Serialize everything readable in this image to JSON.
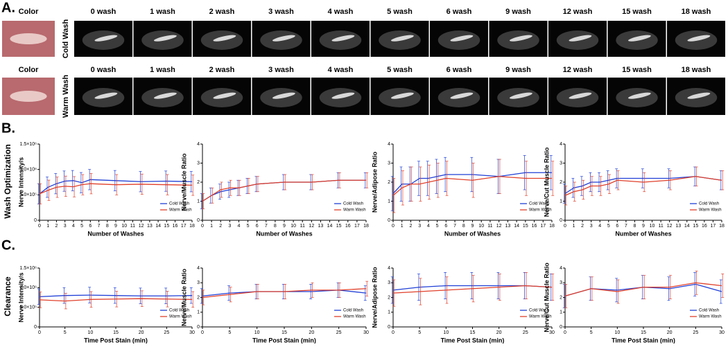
{
  "panel_labels": [
    "A.",
    "B.",
    "C."
  ],
  "row_titles": [
    "Wash Optimization",
    "Clearance"
  ],
  "image_rows": [
    {
      "label": "Cold Wash",
      "headers": [
        "Color",
        "0 wash",
        "1 wash",
        "2 wash",
        "3 wash",
        "4 wash",
        "5 wash",
        "6 wash",
        "9 wash",
        "12 wash",
        "15 wash",
        "18 wash"
      ]
    },
    {
      "label": "Warm Wash",
      "headers": [
        "Color",
        "0 wash",
        "1 wash",
        "2 wash",
        "3 wash",
        "4 wash",
        "5 wash",
        "6 wash",
        "9 wash",
        "12 wash",
        "15 wash",
        "18 wash"
      ]
    }
  ],
  "chart_data": [
    {
      "type": "line",
      "ylabel": "Nerve Intensity/s",
      "xlabel": "Number of Washes",
      "x": [
        0,
        1,
        2,
        3,
        4,
        5,
        6,
        9,
        12,
        15,
        18
      ],
      "xlim": [
        0,
        18
      ],
      "xticks": [
        0,
        1,
        2,
        3,
        4,
        5,
        6,
        7,
        8,
        9,
        10,
        11,
        12,
        13,
        14,
        15,
        16,
        17,
        18
      ],
      "ylim": [
        0,
        1500000
      ],
      "yticks": [
        0,
        {
          "value": 500000,
          "label": "5.0×10⁵"
        },
        {
          "value": 1000000,
          "label": "1.0×10⁶"
        },
        {
          "value": 1500000,
          "label": "1.5×10⁶"
        }
      ],
      "legend": "lower right",
      "series": [
        {
          "name": "Cold Wash",
          "color": "#1f3fd6",
          "values": [
            520000,
            650000,
            720000,
            770000,
            780000,
            740000,
            800000,
            780000,
            760000,
            770000,
            760000
          ],
          "errors": [
            200000,
            200000,
            200000,
            200000,
            200000,
            200000,
            200000,
            200000,
            200000,
            200000,
            200000
          ]
        },
        {
          "name": "Warm Wash",
          "color": "#e0402a",
          "values": [
            520000,
            590000,
            650000,
            670000,
            660000,
            700000,
            720000,
            700000,
            710000,
            700000,
            690000
          ],
          "errors": [
            200000,
            200000,
            200000,
            200000,
            200000,
            200000,
            200000,
            200000,
            200000,
            200000,
            200000
          ]
        }
      ]
    },
    {
      "type": "line",
      "ylabel": "Nerve/Muscle Ratio",
      "xlabel": "Number of Washes",
      "x": [
        0,
        1,
        2,
        3,
        4,
        5,
        6,
        9,
        12,
        15,
        18
      ],
      "xlim": [
        0,
        18
      ],
      "xticks": [
        0,
        1,
        2,
        3,
        4,
        5,
        6,
        7,
        8,
        9,
        10,
        11,
        12,
        13,
        14,
        15,
        16,
        17,
        18
      ],
      "ylim": [
        0,
        4
      ],
      "yticks": [
        0,
        1,
        2,
        3,
        4
      ],
      "legend": "lower right",
      "series": [
        {
          "name": "Cold Wash",
          "color": "#1f3fd6",
          "values": [
            1.0,
            1.3,
            1.5,
            1.6,
            1.7,
            1.8,
            1.9,
            2.0,
            2.0,
            2.1,
            2.1
          ],
          "errors": [
            0.4,
            0.4,
            0.4,
            0.4,
            0.4,
            0.4,
            0.4,
            0.4,
            0.4,
            0.4,
            0.4
          ]
        },
        {
          "name": "Warm Wash",
          "color": "#e0402a",
          "values": [
            1.0,
            1.3,
            1.6,
            1.7,
            1.7,
            1.8,
            1.9,
            2.0,
            2.0,
            2.1,
            2.1
          ],
          "errors": [
            0.4,
            0.4,
            0.4,
            0.4,
            0.4,
            0.4,
            0.4,
            0.4,
            0.4,
            0.4,
            0.4
          ]
        }
      ]
    },
    {
      "type": "line",
      "ylabel": "Nerve/Adipose Ratio",
      "xlabel": "Number of Washes",
      "x": [
        0,
        1,
        2,
        3,
        4,
        5,
        6,
        9,
        12,
        15,
        18
      ],
      "xlim": [
        0,
        18
      ],
      "xticks": [
        0,
        1,
        2,
        3,
        4,
        5,
        6,
        7,
        8,
        9,
        10,
        11,
        12,
        13,
        14,
        15,
        16,
        17,
        18
      ],
      "ylim": [
        0,
        4
      ],
      "yticks": [
        0,
        1,
        2,
        3,
        4
      ],
      "legend": "lower right",
      "series": [
        {
          "name": "Cold Wash",
          "color": "#1f3fd6",
          "values": [
            1.4,
            1.9,
            1.9,
            2.2,
            2.2,
            2.3,
            2.4,
            2.4,
            2.3,
            2.5,
            2.5
          ],
          "errors": [
            0.9,
            0.9,
            0.9,
            0.9,
            0.9,
            0.9,
            0.9,
            0.9,
            0.9,
            0.9,
            0.9
          ]
        },
        {
          "name": "Warm Wash",
          "color": "#e0402a",
          "values": [
            1.3,
            1.7,
            1.9,
            1.9,
            2.0,
            2.1,
            2.2,
            2.1,
            2.3,
            2.2,
            2.2
          ],
          "errors": [
            0.9,
            0.9,
            0.9,
            0.9,
            0.9,
            0.9,
            0.9,
            0.9,
            0.9,
            0.9,
            0.9
          ]
        }
      ]
    },
    {
      "type": "line",
      "ylabel": "Nerve/Cut Muscle Ratio",
      "xlabel": "Number of Washes",
      "x": [
        0,
        1,
        2,
        3,
        4,
        5,
        6,
        9,
        12,
        15,
        18
      ],
      "xlim": [
        0,
        18
      ],
      "xticks": [
        0,
        1,
        2,
        3,
        4,
        5,
        6,
        7,
        8,
        9,
        10,
        11,
        12,
        13,
        14,
        15,
        16,
        17,
        18
      ],
      "ylim": [
        0,
        4
      ],
      "yticks": [
        0,
        1,
        2,
        3,
        4
      ],
      "legend": "lower right",
      "series": [
        {
          "name": "Cold Wash",
          "color": "#1f3fd6",
          "values": [
            1.4,
            1.7,
            1.8,
            2.0,
            2.0,
            2.1,
            2.2,
            2.2,
            2.2,
            2.3,
            2.1
          ],
          "errors": [
            0.5,
            0.5,
            0.5,
            0.5,
            0.5,
            0.5,
            0.5,
            0.5,
            0.5,
            0.5,
            0.5
          ]
        },
        {
          "name": "Warm Wash",
          "color": "#e0402a",
          "values": [
            1.3,
            1.5,
            1.6,
            1.8,
            1.8,
            1.9,
            2.1,
            2.0,
            2.1,
            2.3,
            2.1
          ],
          "errors": [
            0.5,
            0.5,
            0.5,
            0.5,
            0.5,
            0.5,
            0.5,
            0.5,
            0.5,
            0.5,
            0.5
          ]
        }
      ]
    },
    {
      "type": "line",
      "ylabel": "Nerve Intensity/s",
      "xlabel": "Time Post Stain (min)",
      "x": [
        0,
        5,
        10,
        15,
        20,
        25,
        30
      ],
      "xlim": [
        0,
        30
      ],
      "xticks": [
        0,
        5,
        10,
        15,
        20,
        25,
        30
      ],
      "ylim": [
        0,
        1500000
      ],
      "yticks": [
        0,
        {
          "value": 500000,
          "label": "5.0×10⁵"
        },
        {
          "value": 1000000,
          "label": "1.0×10⁶"
        },
        {
          "value": 1500000,
          "label": "1.5×10⁶"
        }
      ],
      "legend": "lower right",
      "series": [
        {
          "name": "Cold Wash",
          "color": "#1f3fd6",
          "values": [
            770000,
            800000,
            810000,
            800000,
            790000,
            790000,
            800000
          ],
          "errors": [
            200000,
            200000,
            200000,
            200000,
            200000,
            200000,
            200000
          ]
        },
        {
          "name": "Warm Wash",
          "color": "#e0402a",
          "values": [
            690000,
            660000,
            700000,
            710000,
            720000,
            710000,
            700000
          ],
          "errors": [
            200000,
            200000,
            200000,
            200000,
            200000,
            200000,
            200000
          ]
        }
      ]
    },
    {
      "type": "line",
      "ylabel": "Nerve/Muscle Ratio",
      "xlabel": "Time Post Stain (min)",
      "x": [
        0,
        5,
        10,
        15,
        20,
        25,
        30
      ],
      "xlim": [
        0,
        30
      ],
      "xticks": [
        0,
        5,
        10,
        15,
        20,
        25,
        30
      ],
      "ylim": [
        0,
        4
      ],
      "yticks": [
        0,
        1,
        2,
        3,
        4
      ],
      "legend": "lower right",
      "series": [
        {
          "name": "Cold Wash",
          "color": "#1f3fd6",
          "values": [
            2.1,
            2.3,
            2.4,
            2.4,
            2.4,
            2.5,
            2.3
          ],
          "errors": [
            0.5,
            0.5,
            0.5,
            0.5,
            0.5,
            0.5,
            0.5
          ]
        },
        {
          "name": "Warm Wash",
          "color": "#e0402a",
          "values": [
            2.0,
            2.2,
            2.4,
            2.4,
            2.5,
            2.5,
            2.6
          ],
          "errors": [
            0.5,
            0.5,
            0.5,
            0.5,
            0.5,
            0.5,
            0.5
          ]
        }
      ]
    },
    {
      "type": "line",
      "ylabel": "Nerve/Adipose Ratio",
      "xlabel": "Time Post Stain (min)",
      "x": [
        0,
        5,
        10,
        15,
        20,
        25,
        30
      ],
      "xlim": [
        0,
        30
      ],
      "xticks": [
        0,
        5,
        10,
        15,
        20,
        25,
        30
      ],
      "ylim": [
        0,
        4
      ],
      "yticks": [
        0,
        1,
        2,
        3,
        4
      ],
      "legend": "lower right",
      "series": [
        {
          "name": "Cold Wash",
          "color": "#1f3fd6",
          "values": [
            2.5,
            2.7,
            2.8,
            2.8,
            2.8,
            2.8,
            2.7
          ],
          "errors": [
            0.9,
            0.9,
            0.9,
            0.9,
            0.9,
            0.9,
            0.9
          ]
        },
        {
          "name": "Warm Wash",
          "color": "#e0402a",
          "values": [
            2.3,
            2.4,
            2.5,
            2.6,
            2.7,
            2.8,
            2.7
          ],
          "errors": [
            0.9,
            0.9,
            0.9,
            0.9,
            0.9,
            0.9,
            0.9
          ]
        }
      ]
    },
    {
      "type": "line",
      "ylabel": "Nerve/Cut Muscle Ratio",
      "xlabel": "Time Post Stain (min)",
      "x": [
        0,
        5,
        10,
        15,
        20,
        25,
        30
      ],
      "xlim": [
        0,
        30
      ],
      "xticks": [
        0,
        5,
        10,
        15,
        20,
        25,
        30
      ],
      "ylim": [
        0,
        4
      ],
      "yticks": [
        0,
        1,
        2,
        3,
        4
      ],
      "legend": "lower right",
      "series": [
        {
          "name": "Cold Wash",
          "color": "#1f3fd6",
          "values": [
            2.1,
            2.6,
            2.5,
            2.7,
            2.6,
            2.9,
            2.4
          ],
          "errors": [
            0.8,
            0.8,
            0.8,
            0.8,
            0.8,
            0.8,
            0.8
          ]
        },
        {
          "name": "Warm Wash",
          "color": "#e0402a",
          "values": [
            2.1,
            2.6,
            2.4,
            2.7,
            2.7,
            3.0,
            2.8
          ],
          "errors": [
            0.8,
            0.8,
            0.8,
            0.8,
            0.8,
            0.8,
            0.8
          ]
        }
      ]
    }
  ]
}
